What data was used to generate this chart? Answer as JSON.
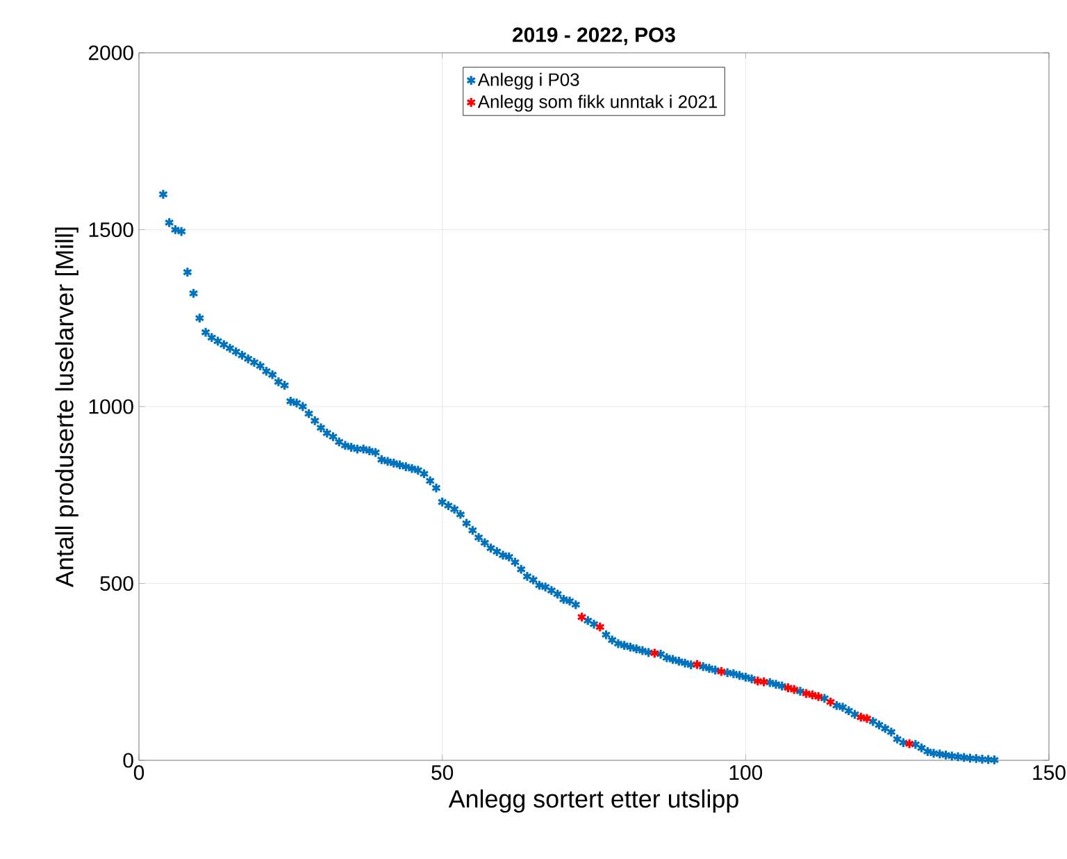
{
  "chart_data": {
    "type": "scatter",
    "title": "2019 - 2022, PO3",
    "xlabel": "Anlegg sortert etter utslipp",
    "ylabel": "Antall produserte luselarver [Mill]",
    "xlim": [
      0,
      150
    ],
    "ylim": [
      0,
      2000
    ],
    "xticks": [
      0,
      50,
      100,
      150
    ],
    "yticks": [
      0,
      500,
      1000,
      1500,
      2000
    ],
    "grid": true,
    "legend": "top",
    "marker": "cross",
    "series": [
      {
        "name": "Anlegg i P03",
        "color": "#0072bd",
        "x": [
          4,
          5,
          6,
          7,
          8,
          9,
          10,
          11,
          12,
          13,
          14,
          15,
          16,
          17,
          18,
          19,
          20,
          21,
          22,
          23,
          24,
          25,
          26,
          27,
          28,
          29,
          30,
          31,
          32,
          33,
          34,
          35,
          36,
          37,
          38,
          39,
          40,
          41,
          42,
          43,
          44,
          45,
          46,
          47,
          48,
          49,
          50,
          51,
          52,
          53,
          54,
          55,
          56,
          57,
          58,
          59,
          60,
          61,
          62,
          63,
          64,
          65,
          66,
          67,
          68,
          69,
          70,
          71,
          72,
          74,
          75,
          77,
          78,
          79,
          80,
          81,
          82,
          83,
          84,
          86,
          87,
          88,
          89,
          90,
          91,
          93,
          94,
          95,
          97,
          98,
          99,
          100,
          101,
          104,
          105,
          106,
          109,
          113,
          115,
          116,
          117,
          118,
          121,
          122,
          123,
          124,
          125,
          126,
          128,
          129,
          130,
          131,
          132,
          133,
          134,
          135,
          136,
          137,
          138,
          139,
          140,
          141
        ],
        "values": [
          1600,
          1520,
          1500,
          1495,
          1380,
          1320,
          1250,
          1210,
          1195,
          1185,
          1175,
          1165,
          1155,
          1145,
          1135,
          1125,
          1115,
          1100,
          1090,
          1070,
          1060,
          1015,
          1010,
          1000,
          980,
          960,
          940,
          925,
          915,
          900,
          890,
          885,
          880,
          880,
          875,
          870,
          850,
          845,
          840,
          835,
          830,
          825,
          820,
          810,
          790,
          770,
          730,
          720,
          710,
          695,
          670,
          650,
          630,
          615,
          600,
          590,
          580,
          575,
          560,
          540,
          520,
          510,
          495,
          490,
          480,
          470,
          455,
          450,
          440,
          395,
          385,
          355,
          340,
          330,
          325,
          320,
          315,
          310,
          305,
          300,
          290,
          285,
          280,
          275,
          270,
          265,
          260,
          255,
          248,
          245,
          240,
          235,
          230,
          220,
          215,
          210,
          195,
          175,
          155,
          150,
          140,
          130,
          110,
          100,
          90,
          80,
          60,
          50,
          45,
          35,
          25,
          20,
          18,
          15,
          12,
          10,
          8,
          6,
          5,
          3,
          2,
          1
        ]
      },
      {
        "name": "Anlegg som fikk unntak i 2021",
        "color": "#ff0000",
        "x": [
          73,
          76,
          85,
          92,
          96,
          102,
          103,
          107,
          108,
          110,
          111,
          112,
          114,
          119,
          120,
          127
        ],
        "values": [
          405,
          377,
          303,
          271,
          251,
          224,
          222,
          205,
          200,
          189,
          185,
          180,
          165,
          122,
          118,
          47
        ]
      }
    ]
  }
}
